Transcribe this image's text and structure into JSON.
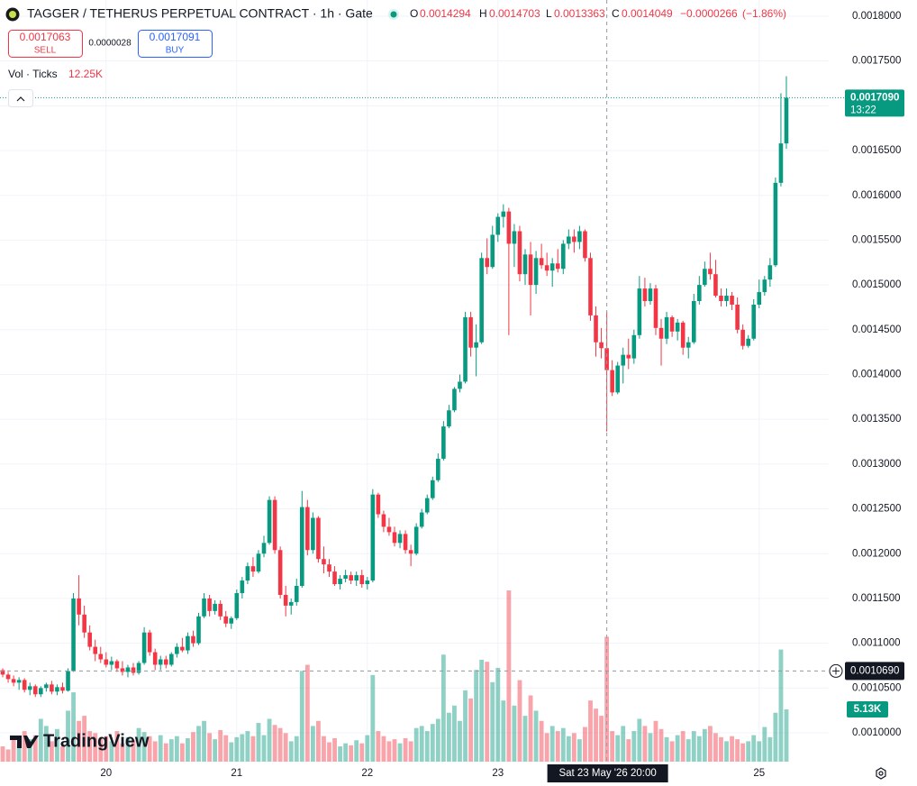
{
  "chart_data": {
    "type": "candlestick",
    "title": "TAGGER / TETHERUS PERPETUAL CONTRACT · 1h · Gate",
    "up_color": "#089981",
    "down_color": "#f23645",
    "grid": true,
    "ylim": [
      0.0009678,
      0.0018181
    ],
    "yticks": [
      {
        "value": 0.001,
        "label": "0.0010000"
      },
      {
        "value": 0.00105,
        "label": "0.0010500"
      },
      {
        "value": 0.0011,
        "label": "0.0011000"
      },
      {
        "value": 0.00115,
        "label": "0.0011500"
      },
      {
        "value": 0.0012,
        "label": "0.0012000"
      },
      {
        "value": 0.00125,
        "label": "0.0012500"
      },
      {
        "value": 0.0013,
        "label": "0.0013000"
      },
      {
        "value": 0.00135,
        "label": "0.0013500"
      },
      {
        "value": 0.0014,
        "label": "0.0014000"
      },
      {
        "value": 0.00145,
        "label": "0.0014500"
      },
      {
        "value": 0.0015,
        "label": "0.0015000"
      },
      {
        "value": 0.00155,
        "label": "0.0015500"
      },
      {
        "value": 0.0016,
        "label": "0.0016000"
      },
      {
        "value": 0.00165,
        "label": "0.0016500"
      },
      {
        "value": 0.0017,
        "label": "0.0017000"
      },
      {
        "value": 0.00175,
        "label": "0.0017500"
      },
      {
        "value": 0.0018,
        "label": "0.0018000"
      }
    ],
    "categories": [
      null,
      null,
      null,
      null,
      null,
      null,
      null,
      null,
      null,
      null,
      null,
      null,
      null,
      null,
      null,
      null,
      null,
      null,
      null,
      "20",
      null,
      null,
      null,
      null,
      null,
      null,
      null,
      null,
      null,
      null,
      null,
      null,
      null,
      null,
      null,
      null,
      null,
      null,
      null,
      null,
      null,
      null,
      null,
      "21",
      null,
      null,
      null,
      null,
      null,
      null,
      null,
      null,
      null,
      null,
      null,
      null,
      null,
      null,
      null,
      null,
      null,
      null,
      null,
      null,
      null,
      null,
      null,
      "22",
      null,
      null,
      null,
      null,
      null,
      null,
      null,
      null,
      null,
      null,
      null,
      null,
      null,
      null,
      null,
      null,
      null,
      null,
      null,
      null,
      null,
      null,
      null,
      "23",
      null,
      null,
      null,
      null,
      null,
      null,
      null,
      null,
      null,
      null,
      null,
      null,
      null,
      null,
      null,
      null,
      null,
      null,
      null,
      null,
      null,
      null,
      null,
      null,
      null,
      null,
      null,
      null,
      null,
      null,
      null,
      null,
      null,
      null,
      null,
      null,
      null,
      null,
      null,
      null,
      null,
      null,
      null,
      null,
      null,
      null,
      null,
      "25",
      null,
      null,
      null,
      null,
      null
    ],
    "open": [
      0.00107,
      0.001065,
      0.00106,
      0.001056,
      0.001059,
      0.001048,
      0.001052,
      0.001043,
      0.00105,
      0.001054,
      0.001046,
      0.001051,
      0.001047,
      0.001069,
      0.00115,
      0.001132,
      0.001112,
      0.001096,
      0.001088,
      0.001082,
      0.001076,
      0.00108,
      0.001072,
      0.001068,
      0.001073,
      0.001067,
      0.001078,
      0.001112,
      0.00109,
      0.001076,
      0.001082,
      0.001076,
      0.001088,
      0.001096,
      0.001092,
      0.001108,
      0.0011,
      0.00113,
      0.00115,
      0.001136,
      0.001144,
      0.00113,
      0.001122,
      0.001128,
      0.001156,
      0.00117,
      0.001186,
      0.00118,
      0.0012,
      0.001212,
      0.00126,
      0.001204,
      0.001154,
      0.001142,
      0.001146,
      0.001164,
      0.001252,
      0.001204,
      0.00124,
      0.001194,
      0.001188,
      0.00118,
      0.001166,
      0.001172,
      0.001176,
      0.00117,
      0.001176,
      0.001166,
      0.00117,
      0.001266,
      0.001244,
      0.00123,
      0.001224,
      0.001212,
      0.001222,
      0.001204,
      0.0012,
      0.00123,
      0.001246,
      0.001262,
      0.001282,
      0.001306,
      0.001342,
      0.00136,
      0.001384,
      0.001392,
      0.001464,
      0.00143,
      0.001436,
      0.00153,
      0.00152,
      0.001556,
      0.001576,
      0.001582,
      0.001546,
      0.00156,
      0.001512,
      0.001534,
      0.0015,
      0.00153,
      0.001522,
      0.001516,
      0.001524,
      0.001518,
      0.001546,
      0.001554,
      0.001548,
      0.00156,
      0.00153,
      0.001466,
      0.001436,
      0.0014294,
      0.0014049,
      0.00138,
      0.00141,
      0.001422,
      0.001418,
      0.001444,
      0.001496,
      0.001482,
      0.001496,
      0.001452,
      0.00144,
      0.001464,
      0.001448,
      0.001458,
      0.00143,
      0.001436,
      0.001482,
      0.0015,
      0.001518,
      0.001512,
      0.001488,
      0.001482,
      0.001488,
      0.001478,
      0.00145,
      0.001432,
      0.00144,
      0.001478,
      0.001492,
      0.001506,
      0.001522,
      0.001614,
      0.001658
    ],
    "high": [
      0.001072,
      0.001068,
      0.001064,
      0.001062,
      0.001061,
      0.001056,
      0.001054,
      0.001052,
      0.001056,
      0.001058,
      0.001054,
      0.001056,
      0.001072,
      0.001156,
      0.001176,
      0.001142,
      0.00112,
      0.001104,
      0.001096,
      0.00109,
      0.001085,
      0.001082,
      0.00108,
      0.001076,
      0.001078,
      0.00108,
      0.001118,
      0.001115,
      0.001094,
      0.001086,
      0.001086,
      0.00109,
      0.0011,
      0.001106,
      0.001112,
      0.001114,
      0.001134,
      0.001156,
      0.001154,
      0.001148,
      0.001148,
      0.001136,
      0.00113,
      0.00116,
      0.001174,
      0.00119,
      0.001196,
      0.001204,
      0.00122,
      0.001264,
      0.001264,
      0.001208,
      0.001164,
      0.00115,
      0.001172,
      0.00127,
      0.00126,
      0.001246,
      0.001242,
      0.001208,
      0.001194,
      0.001186,
      0.001176,
      0.001182,
      0.00118,
      0.00118,
      0.001182,
      0.001174,
      0.001272,
      0.001268,
      0.001248,
      0.00124,
      0.00123,
      0.001226,
      0.001226,
      0.00121,
      0.001234,
      0.00125,
      0.001266,
      0.001286,
      0.001312,
      0.001348,
      0.001366,
      0.001386,
      0.0014,
      0.00147,
      0.00147,
      0.001456,
      0.001536,
      0.001552,
      0.001566,
      0.00158,
      0.00159,
      0.001586,
      0.001568,
      0.001566,
      0.00154,
      0.001548,
      0.001538,
      0.001546,
      0.001536,
      0.00153,
      0.00154,
      0.00155,
      0.001562,
      0.001562,
      0.001566,
      0.001562,
      0.001536,
      0.001476,
      0.001452,
      0.0014703,
      0.001416,
      0.001414,
      0.00143,
      0.00144,
      0.00145,
      0.00151,
      0.001508,
      0.001502,
      0.0015,
      0.001462,
      0.00147,
      0.001466,
      0.001462,
      0.00146,
      0.001442,
      0.00149,
      0.00151,
      0.001526,
      0.001536,
      0.001528,
      0.001496,
      0.001496,
      0.001492,
      0.001486,
      0.001456,
      0.001444,
      0.001484,
      0.001506,
      0.00151,
      0.00153,
      0.00162,
      0.001714,
      0.001733
    ],
    "low": [
      0.001062,
      0.001056,
      0.001052,
      0.001048,
      0.001045,
      0.001042,
      0.00104,
      0.00104,
      0.001046,
      0.001043,
      0.001042,
      0.001044,
      0.001046,
      0.001068,
      0.00112,
      0.001106,
      0.001092,
      0.00108,
      0.001078,
      0.001073,
      0.00107,
      0.001068,
      0.001064,
      0.001062,
      0.001064,
      0.001065,
      0.001076,
      0.001086,
      0.00107,
      0.00107,
      0.001072,
      0.001074,
      0.001084,
      0.00109,
      0.001088,
      0.001096,
      0.001098,
      0.001128,
      0.00113,
      0.001132,
      0.001126,
      0.001118,
      0.001116,
      0.001126,
      0.00115,
      0.001166,
      0.001174,
      0.001178,
      0.001196,
      0.00121,
      0.0012,
      0.00115,
      0.00113,
      0.001132,
      0.001142,
      0.001162,
      0.001198,
      0.0012,
      0.00119,
      0.001178,
      0.001174,
      0.001164,
      0.00116,
      0.001168,
      0.001166,
      0.001164,
      0.001162,
      0.00116,
      0.001168,
      0.00124,
      0.001224,
      0.00122,
      0.001208,
      0.001206,
      0.0012,
      0.001186,
      0.001198,
      0.001228,
      0.001244,
      0.00126,
      0.00128,
      0.001304,
      0.00134,
      0.001358,
      0.00138,
      0.00139,
      0.00142,
      0.001398,
      0.001434,
      0.001512,
      0.001518,
      0.001548,
      0.001564,
      0.001444,
      0.00152,
      0.001504,
      0.0015,
      0.001466,
      0.00149,
      0.001518,
      0.00151,
      0.001498,
      0.001514,
      0.001512,
      0.00154,
      0.001536,
      0.00154,
      0.001526,
      0.00146,
      0.00142,
      0.001418,
      0.0013363,
      0.001376,
      0.001378,
      0.00139,
      0.001406,
      0.001412,
      0.00144,
      0.001476,
      0.001478,
      0.001444,
      0.00141,
      0.001434,
      0.001442,
      0.001438,
      0.001422,
      0.001418,
      0.001434,
      0.001478,
      0.001498,
      0.001506,
      0.001486,
      0.001476,
      0.001476,
      0.001472,
      0.001446,
      0.001428,
      0.00143,
      0.001438,
      0.001474,
      0.001488,
      0.001498,
      0.00152,
      0.00161,
      0.001652
    ],
    "close": [
      0.001065,
      0.00106,
      0.001056,
      0.001059,
      0.001048,
      0.001052,
      0.001043,
      0.00105,
      0.001054,
      0.001046,
      0.001051,
      0.001047,
      0.001069,
      0.00115,
      0.001132,
      0.001112,
      0.001096,
      0.001088,
      0.001082,
      0.001076,
      0.00108,
      0.001072,
      0.001068,
      0.001073,
      0.001067,
      0.001078,
      0.001112,
      0.00109,
      0.001076,
      0.001082,
      0.001076,
      0.001088,
      0.001096,
      0.001092,
      0.001108,
      0.0011,
      0.00113,
      0.00115,
      0.001136,
      0.001144,
      0.00113,
      0.001122,
      0.001128,
      0.001156,
      0.00117,
      0.001186,
      0.00118,
      0.0012,
      0.001212,
      0.00126,
      0.001204,
      0.001154,
      0.001142,
      0.001146,
      0.001164,
      0.001252,
      0.001204,
      0.00124,
      0.001194,
      0.001188,
      0.00118,
      0.001166,
      0.001172,
      0.001176,
      0.00117,
      0.001176,
      0.001166,
      0.00117,
      0.001266,
      0.001244,
      0.00123,
      0.001224,
      0.001212,
      0.001222,
      0.001204,
      0.0012,
      0.00123,
      0.001246,
      0.001262,
      0.001282,
      0.001306,
      0.001342,
      0.00136,
      0.001384,
      0.001392,
      0.001464,
      0.00143,
      0.001436,
      0.00153,
      0.00152,
      0.001556,
      0.001576,
      0.001582,
      0.001546,
      0.00156,
      0.001512,
      0.001534,
      0.0015,
      0.00153,
      0.001522,
      0.001516,
      0.001524,
      0.001518,
      0.001546,
      0.001554,
      0.001548,
      0.00156,
      0.00153,
      0.001466,
      0.001436,
      0.0014294,
      0.0014049,
      0.00138,
      0.00141,
      0.001422,
      0.001418,
      0.001444,
      0.001496,
      0.001482,
      0.001496,
      0.001452,
      0.00144,
      0.001464,
      0.001448,
      0.001458,
      0.00143,
      0.001436,
      0.001482,
      0.0015,
      0.001518,
      0.001512,
      0.001488,
      0.001482,
      0.001488,
      0.001478,
      0.00145,
      0.001432,
      0.00144,
      0.001478,
      0.001492,
      0.001506,
      0.001522,
      0.001614,
      0.001658,
      0.001709
    ],
    "volume": [
      1500,
      1200,
      2500,
      1800,
      3000,
      2200,
      2600,
      4200,
      3500,
      2000,
      3200,
      1500,
      5000,
      6800,
      4000,
      4500,
      3000,
      2800,
      2200,
      2500,
      2000,
      3000,
      1800,
      2400,
      2100,
      3300,
      2900,
      2500,
      2000,
      2600,
      1800,
      2200,
      2500,
      1800,
      2300,
      2900,
      3500,
      4000,
      2800,
      2200,
      3100,
      2600,
      1900,
      2400,
      2700,
      3000,
      2500,
      3800,
      2600,
      4200,
      3600,
      3300,
      2800,
      2000,
      2500,
      8900,
      9500,
      3500,
      4000,
      2500,
      1900,
      2300,
      1500,
      1800,
      1600,
      2100,
      1800,
      2600,
      8500,
      3000,
      2500,
      2000,
      2200,
      1800,
      2300,
      2000,
      3300,
      3500,
      3000,
      3700,
      4200,
      10500,
      4800,
      5500,
      4000,
      7000,
      6200,
      9000,
      10000,
      9800,
      7800,
      9200,
      6000,
      16800,
      5500,
      8000,
      4500,
      6500,
      5000,
      4000,
      2800,
      3500,
      3000,
      3300,
      2500,
      2800,
      2200,
      3400,
      6000,
      5200,
      4500,
      12250,
      3000,
      2600,
      3500,
      2200,
      3000,
      4200,
      3500,
      2800,
      4000,
      3200,
      2400,
      2000,
      2600,
      3000,
      2200,
      3000,
      2500,
      3200,
      3500,
      2800,
      2400,
      2000,
      2500,
      2200,
      1800,
      2000,
      2600,
      2000,
      3400,
      2400,
      4800,
      11000,
      5130
    ],
    "volume_value_labels": [
      null,
      null,
      null,
      null,
      null,
      null,
      null,
      null,
      null,
      null,
      null,
      null,
      null,
      null,
      null,
      null,
      null,
      null,
      null,
      null,
      null,
      null,
      null,
      null,
      null,
      null,
      null,
      null,
      null,
      null,
      null,
      null,
      null,
      null,
      null,
      null,
      null,
      null,
      null,
      null,
      null,
      null,
      null,
      null,
      null,
      null,
      null,
      null,
      null,
      null,
      null,
      null,
      null,
      null,
      null,
      null,
      null,
      null,
      null,
      null,
      null,
      null,
      null,
      null,
      null,
      null,
      null,
      null,
      null,
      null,
      null,
      null,
      null,
      null,
      null,
      null,
      null,
      null,
      null,
      null,
      null,
      null,
      null,
      null,
      null,
      null,
      null,
      null,
      null,
      null,
      null,
      null,
      null,
      null,
      null,
      null,
      null,
      null,
      null,
      null,
      null,
      null,
      null,
      null,
      null,
      null,
      null,
      null,
      null,
      null,
      null,
      "12.25K",
      null,
      null,
      null,
      null,
      null,
      null,
      null,
      null,
      null,
      null,
      null,
      null,
      null,
      null,
      null,
      null,
      null,
      null,
      null,
      null,
      null,
      null,
      null,
      null,
      null,
      null,
      null,
      null,
      null,
      null,
      null,
      null,
      "5.13K"
    ],
    "volume_title": "Vol · Ticks",
    "ohlc_labels": [
      "O",
      "H",
      "L",
      "C"
    ],
    "change": {
      "value": -2.66e-05,
      "label": "−0.0000266"
    },
    "change_percent": {
      "value": -1.86,
      "label": "(−1.86%)"
    },
    "sell_price": 0.0017063,
    "sell_label": "SELL",
    "spread": 2.8e-06,
    "buy_price": 0.0017091,
    "buy_label": "BUY",
    "last_price": {
      "value": 0.001709,
      "label": "0.0017090"
    },
    "countdown": "13:22",
    "crosshair_price": {
      "value": 0.001069,
      "label": "0.0010690"
    },
    "crosshair_time": "Sat 23 May '26 20:00",
    "watermark": "TradingView"
  }
}
